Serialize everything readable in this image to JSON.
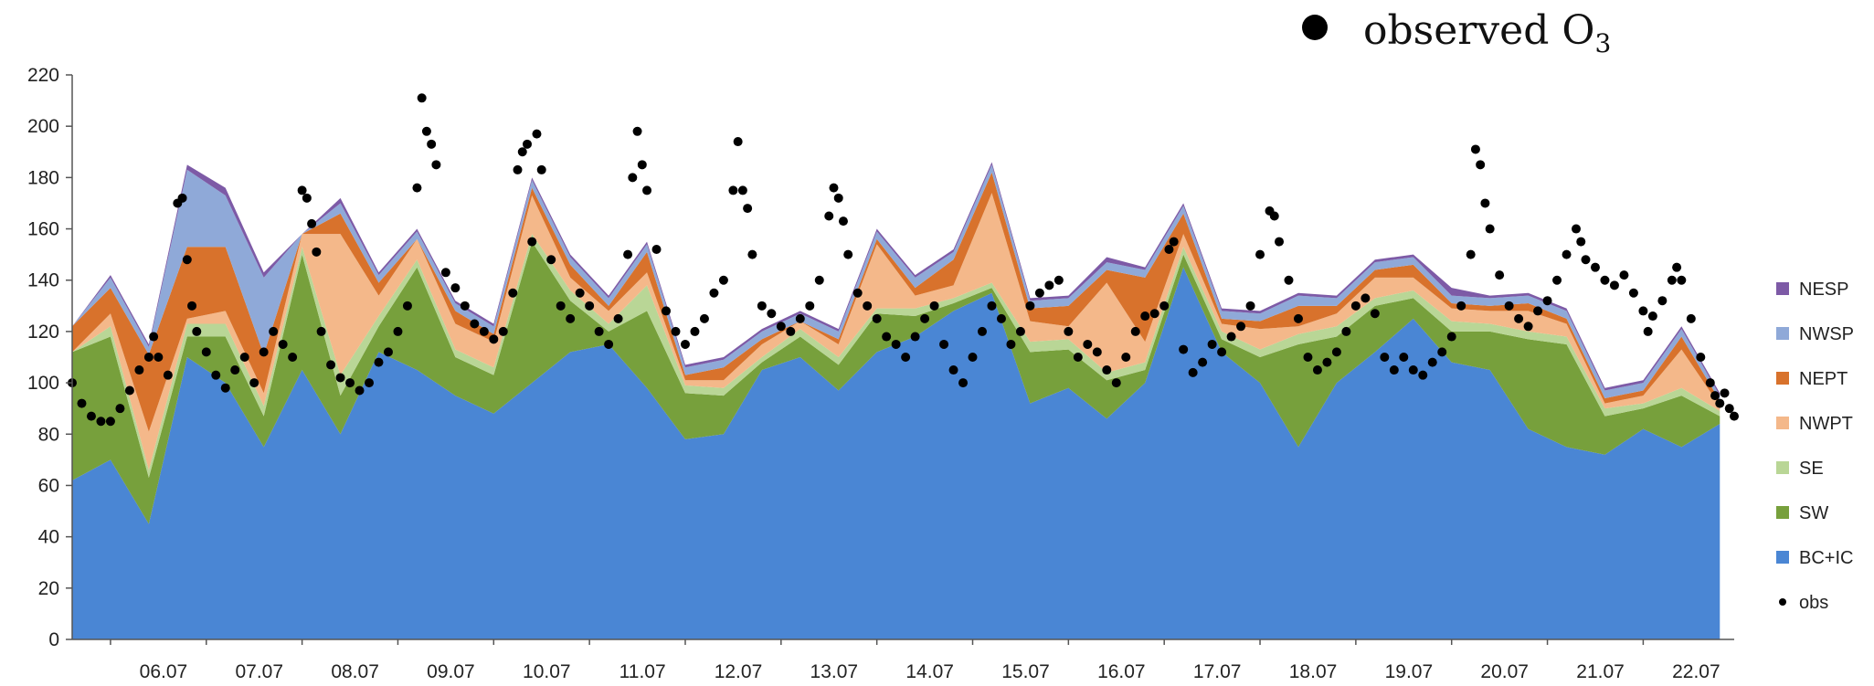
{
  "chart_data": {
    "type": "area",
    "stacked": true,
    "xlabel": "",
    "ylabel": "",
    "ylim": [
      0,
      220
    ],
    "y_ticks": [
      0,
      20,
      40,
      60,
      80,
      100,
      120,
      140,
      160,
      180,
      200,
      220
    ],
    "x_range_days": [
      5.6,
      22.95
    ],
    "x_ticks": [
      {
        "label": "06.07",
        "day": 6
      },
      {
        "label": "07.07",
        "day": 7
      },
      {
        "label": "08.07",
        "day": 8
      },
      {
        "label": "09.07",
        "day": 9
      },
      {
        "label": "10.07",
        "day": 10
      },
      {
        "label": "11.07",
        "day": 11
      },
      {
        "label": "12.07",
        "day": 12
      },
      {
        "label": "13.07",
        "day": 13
      },
      {
        "label": "14.07",
        "day": 14
      },
      {
        "label": "15.07",
        "day": 15
      },
      {
        "label": "16.07",
        "day": 16
      },
      {
        "label": "17.07",
        "day": 17
      },
      {
        "label": "18.07",
        "day": 18
      },
      {
        "label": "19.07",
        "day": 19
      },
      {
        "label": "20.07",
        "day": 20
      },
      {
        "label": "21.07",
        "day": 21
      },
      {
        "label": "22.07",
        "day": 22
      }
    ],
    "grid": false,
    "legend_position": "right",
    "observed_legend_label": "observed O",
    "observed_legend_sub": "3",
    "x": [
      5.6,
      6.0,
      6.4,
      6.8,
      7.2,
      7.6,
      8.0,
      8.4,
      8.8,
      9.2,
      9.6,
      10.0,
      10.4,
      10.8,
      11.2,
      11.6,
      12.0,
      12.4,
      12.8,
      13.2,
      13.6,
      14.0,
      14.4,
      14.8,
      15.2,
      15.6,
      16.0,
      16.4,
      16.8,
      17.2,
      17.6,
      18.0,
      18.4,
      18.8,
      19.2,
      19.6,
      20.0,
      20.4,
      20.8,
      21.2,
      21.6,
      22.0,
      22.4,
      22.8
    ],
    "series": [
      {
        "name": "BC+IC",
        "color": "#4a86d4",
        "values": [
          62,
          70,
          45,
          110,
          100,
          75,
          105,
          80,
          112,
          105,
          95,
          88,
          100,
          112,
          115,
          98,
          78,
          80,
          105,
          110,
          97,
          112,
          118,
          128,
          135,
          92,
          98,
          86,
          100,
          145,
          112,
          100,
          75,
          100,
          112,
          125,
          108,
          105,
          82,
          75,
          72,
          82,
          75,
          84
        ]
      },
      {
        "name": "SW",
        "color": "#77a03c",
        "values": [
          50,
          48,
          18,
          8,
          18,
          12,
          45,
          15,
          10,
          40,
          15,
          15,
          55,
          20,
          5,
          30,
          18,
          15,
          3,
          8,
          10,
          15,
          8,
          3,
          2,
          20,
          15,
          15,
          5,
          5,
          5,
          10,
          40,
          18,
          18,
          8,
          12,
          15,
          35,
          40,
          15,
          8,
          20,
          3
        ]
      },
      {
        "name": "SE",
        "color": "#b9d696",
        "values": [
          0,
          4,
          3,
          5,
          5,
          4,
          3,
          8,
          4,
          3,
          3,
          3,
          3,
          4,
          3,
          10,
          3,
          3,
          2,
          3,
          3,
          2,
          3,
          2,
          2,
          4,
          4,
          3,
          3,
          3,
          3,
          3,
          4,
          4,
          3,
          3,
          4,
          3,
          3,
          3,
          3,
          2,
          3,
          2
        ]
      },
      {
        "name": "NWPT",
        "color": "#f4b88a",
        "values": [
          0,
          5,
          15,
          2,
          5,
          5,
          5,
          55,
          8,
          8,
          10,
          10,
          15,
          5,
          5,
          5,
          2,
          3,
          5,
          3,
          5,
          25,
          5,
          5,
          35,
          8,
          5,
          35,
          8,
          5,
          3,
          8,
          3,
          5,
          8,
          5,
          5,
          5,
          8,
          5,
          2,
          3,
          15,
          2
        ]
      },
      {
        "name": "NEPT",
        "color": "#d8722c",
        "values": [
          10,
          10,
          30,
          28,
          25,
          15,
          0,
          8,
          5,
          0,
          5,
          3,
          3,
          5,
          2,
          8,
          2,
          5,
          2,
          0,
          2,
          2,
          3,
          10,
          8,
          5,
          8,
          5,
          25,
          8,
          2,
          3,
          8,
          3,
          3,
          5,
          2,
          2,
          3,
          2,
          2,
          2,
          5,
          2
        ]
      },
      {
        "name": "NWSP",
        "color": "#8fa9d8",
        "values": [
          0,
          4,
          3,
          30,
          20,
          30,
          0,
          4,
          3,
          3,
          3,
          3,
          3,
          3,
          3,
          3,
          3,
          3,
          3,
          3,
          3,
          3,
          4,
          3,
          3,
          3,
          3,
          3,
          3,
          3,
          3,
          3,
          4,
          3,
          3,
          3,
          3,
          3,
          3,
          3,
          3,
          3,
          3,
          2
        ]
      },
      {
        "name": "NESP",
        "color": "#7d5aa6",
        "values": [
          0,
          1,
          1,
          2,
          3,
          2,
          0,
          2,
          1,
          1,
          1,
          1,
          1,
          1,
          1,
          1,
          1,
          1,
          1,
          1,
          1,
          1,
          1,
          1,
          1,
          1,
          1,
          2,
          1,
          1,
          1,
          1,
          1,
          1,
          1,
          1,
          3,
          1,
          1,
          1,
          1,
          1,
          1,
          1
        ]
      }
    ],
    "observed": {
      "name": "obs",
      "color": "#000000",
      "points": [
        [
          5.6,
          100
        ],
        [
          5.7,
          92
        ],
        [
          5.8,
          87
        ],
        [
          5.9,
          85
        ],
        [
          6.0,
          85
        ],
        [
          6.1,
          90
        ],
        [
          6.2,
          97
        ],
        [
          6.3,
          105
        ],
        [
          6.4,
          110
        ],
        [
          6.45,
          118
        ],
        [
          6.5,
          110
        ],
        [
          6.6,
          103
        ],
        [
          6.7,
          170
        ],
        [
          6.75,
          172
        ],
        [
          6.8,
          148
        ],
        [
          6.85,
          130
        ],
        [
          6.9,
          120
        ],
        [
          7.0,
          112
        ],
        [
          7.1,
          103
        ],
        [
          7.2,
          98
        ],
        [
          7.3,
          105
        ],
        [
          7.4,
          110
        ],
        [
          7.5,
          100
        ],
        [
          7.6,
          112
        ],
        [
          7.7,
          120
        ],
        [
          7.8,
          115
        ],
        [
          7.9,
          110
        ],
        [
          8.0,
          175
        ],
        [
          8.05,
          172
        ],
        [
          8.1,
          162
        ],
        [
          8.15,
          151
        ],
        [
          8.2,
          120
        ],
        [
          8.3,
          107
        ],
        [
          8.4,
          102
        ],
        [
          8.5,
          100
        ],
        [
          8.6,
          97
        ],
        [
          8.7,
          100
        ],
        [
          8.8,
          108
        ],
        [
          8.9,
          112
        ],
        [
          9.0,
          120
        ],
        [
          9.1,
          130
        ],
        [
          9.2,
          176
        ],
        [
          9.25,
          211
        ],
        [
          9.3,
          198
        ],
        [
          9.35,
          193
        ],
        [
          9.4,
          185
        ],
        [
          9.5,
          143
        ],
        [
          9.6,
          137
        ],
        [
          9.7,
          130
        ],
        [
          9.8,
          123
        ],
        [
          9.9,
          120
        ],
        [
          10.0,
          117
        ],
        [
          10.1,
          120
        ],
        [
          10.2,
          135
        ],
        [
          10.25,
          183
        ],
        [
          10.3,
          190
        ],
        [
          10.35,
          193
        ],
        [
          10.4,
          155
        ],
        [
          10.45,
          197
        ],
        [
          10.5,
          183
        ],
        [
          10.6,
          148
        ],
        [
          10.7,
          130
        ],
        [
          10.8,
          125
        ],
        [
          10.9,
          135
        ],
        [
          11.0,
          130
        ],
        [
          11.1,
          120
        ],
        [
          11.2,
          115
        ],
        [
          11.3,
          125
        ],
        [
          11.4,
          150
        ],
        [
          11.45,
          180
        ],
        [
          11.5,
          198
        ],
        [
          11.55,
          185
        ],
        [
          11.6,
          175
        ],
        [
          11.7,
          152
        ],
        [
          11.8,
          128
        ],
        [
          11.9,
          120
        ],
        [
          12.0,
          115
        ],
        [
          12.1,
          120
        ],
        [
          12.2,
          125
        ],
        [
          12.3,
          135
        ],
        [
          12.4,
          140
        ],
        [
          12.5,
          175
        ],
        [
          12.55,
          194
        ],
        [
          12.6,
          175
        ],
        [
          12.65,
          168
        ],
        [
          12.7,
          150
        ],
        [
          12.8,
          130
        ],
        [
          12.9,
          127
        ],
        [
          13.0,
          122
        ],
        [
          13.1,
          120
        ],
        [
          13.2,
          125
        ],
        [
          13.3,
          130
        ],
        [
          13.4,
          140
        ],
        [
          13.5,
          165
        ],
        [
          13.55,
          176
        ],
        [
          13.6,
          172
        ],
        [
          13.65,
          163
        ],
        [
          13.7,
          150
        ],
        [
          13.8,
          135
        ],
        [
          13.9,
          130
        ],
        [
          14.0,
          125
        ],
        [
          14.1,
          118
        ],
        [
          14.2,
          115
        ],
        [
          14.3,
          110
        ],
        [
          14.4,
          118
        ],
        [
          14.5,
          125
        ],
        [
          14.6,
          130
        ],
        [
          14.7,
          115
        ],
        [
          14.8,
          105
        ],
        [
          14.9,
          100
        ],
        [
          15.0,
          110
        ],
        [
          15.1,
          120
        ],
        [
          15.2,
          130
        ],
        [
          15.3,
          125
        ],
        [
          15.4,
          115
        ],
        [
          15.5,
          120
        ],
        [
          15.6,
          130
        ],
        [
          15.7,
          135
        ],
        [
          15.8,
          138
        ],
        [
          15.9,
          140
        ],
        [
          16.0,
          120
        ],
        [
          16.1,
          110
        ],
        [
          16.2,
          115
        ],
        [
          16.3,
          112
        ],
        [
          16.4,
          105
        ],
        [
          16.5,
          100
        ],
        [
          16.6,
          110
        ],
        [
          16.7,
          120
        ],
        [
          16.8,
          126
        ],
        [
          16.9,
          127
        ],
        [
          17.0,
          130
        ],
        [
          17.05,
          152
        ],
        [
          17.1,
          155
        ],
        [
          17.2,
          113
        ],
        [
          17.3,
          104
        ],
        [
          17.4,
          108
        ],
        [
          17.5,
          115
        ],
        [
          17.6,
          112
        ],
        [
          17.7,
          118
        ],
        [
          17.8,
          122
        ],
        [
          17.9,
          130
        ],
        [
          18.0,
          150
        ],
        [
          18.1,
          167
        ],
        [
          18.15,
          165
        ],
        [
          18.2,
          155
        ],
        [
          18.3,
          140
        ],
        [
          18.4,
          125
        ],
        [
          18.5,
          110
        ],
        [
          18.6,
          105
        ],
        [
          18.7,
          108
        ],
        [
          18.8,
          112
        ],
        [
          18.9,
          120
        ],
        [
          19.0,
          130
        ],
        [
          19.1,
          133
        ],
        [
          19.2,
          127
        ],
        [
          19.3,
          110
        ],
        [
          19.4,
          105
        ],
        [
          19.5,
          110
        ],
        [
          19.6,
          105
        ],
        [
          19.7,
          103
        ],
        [
          19.8,
          108
        ],
        [
          19.9,
          112
        ],
        [
          20.0,
          118
        ],
        [
          20.1,
          130
        ],
        [
          20.2,
          150
        ],
        [
          20.25,
          191
        ],
        [
          20.3,
          185
        ],
        [
          20.35,
          170
        ],
        [
          20.4,
          160
        ],
        [
          20.5,
          142
        ],
        [
          20.6,
          130
        ],
        [
          20.7,
          125
        ],
        [
          20.8,
          122
        ],
        [
          20.9,
          128
        ],
        [
          21.0,
          132
        ],
        [
          21.1,
          140
        ],
        [
          21.2,
          150
        ],
        [
          21.3,
          160
        ],
        [
          21.35,
          155
        ],
        [
          21.4,
          148
        ],
        [
          21.5,
          145
        ],
        [
          21.6,
          140
        ],
        [
          21.7,
          138
        ],
        [
          21.8,
          142
        ],
        [
          21.9,
          135
        ],
        [
          22.0,
          128
        ],
        [
          22.05,
          120
        ],
        [
          22.1,
          126
        ],
        [
          22.2,
          132
        ],
        [
          22.3,
          140
        ],
        [
          22.35,
          145
        ],
        [
          22.4,
          140
        ],
        [
          22.5,
          125
        ],
        [
          22.6,
          110
        ],
        [
          22.7,
          100
        ],
        [
          22.75,
          95
        ],
        [
          22.8,
          92
        ],
        [
          22.85,
          96
        ],
        [
          22.9,
          90
        ],
        [
          22.95,
          87
        ]
      ]
    }
  }
}
